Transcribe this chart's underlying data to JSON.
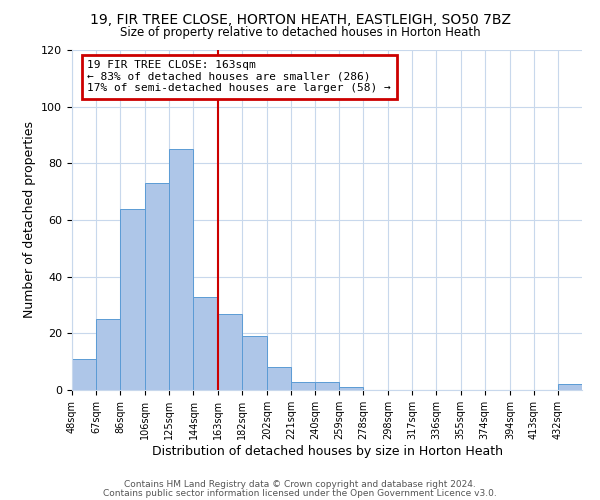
{
  "title": "19, FIR TREE CLOSE, HORTON HEATH, EASTLEIGH, SO50 7BZ",
  "subtitle": "Size of property relative to detached houses in Horton Heath",
  "xlabel": "Distribution of detached houses by size in Horton Heath",
  "ylabel": "Number of detached properties",
  "footnote1": "Contains HM Land Registry data © Crown copyright and database right 2024.",
  "footnote2": "Contains public sector information licensed under the Open Government Licence v3.0.",
  "bar_labels": [
    "48sqm",
    "67sqm",
    "86sqm",
    "106sqm",
    "125sqm",
    "144sqm",
    "163sqm",
    "182sqm",
    "202sqm",
    "221sqm",
    "240sqm",
    "259sqm",
    "278sqm",
    "298sqm",
    "317sqm",
    "336sqm",
    "355sqm",
    "374sqm",
    "394sqm",
    "413sqm",
    "432sqm"
  ],
  "bar_values": [
    11,
    25,
    64,
    73,
    85,
    33,
    27,
    19,
    8,
    3,
    3,
    1,
    0,
    0,
    0,
    0,
    0,
    0,
    0,
    0,
    2
  ],
  "bin_edges": [
    48,
    67,
    86,
    106,
    125,
    144,
    163,
    182,
    202,
    221,
    240,
    259,
    278,
    298,
    317,
    336,
    355,
    374,
    394,
    413,
    432,
    451
  ],
  "bar_color": "#aec6e8",
  "bar_edge_color": "#5b9bd5",
  "vline_x": 163,
  "vline_color": "#cc0000",
  "annotation_title": "19 FIR TREE CLOSE: 163sqm",
  "annotation_line1": "← 83% of detached houses are smaller (286)",
  "annotation_line2": "17% of semi-detached houses are larger (58) →",
  "annotation_box_color": "#cc0000",
  "ylim": [
    0,
    120
  ],
  "yticks": [
    0,
    20,
    40,
    60,
    80,
    100,
    120
  ],
  "bg_color": "#ffffff",
  "grid_color": "#c8d8ec"
}
